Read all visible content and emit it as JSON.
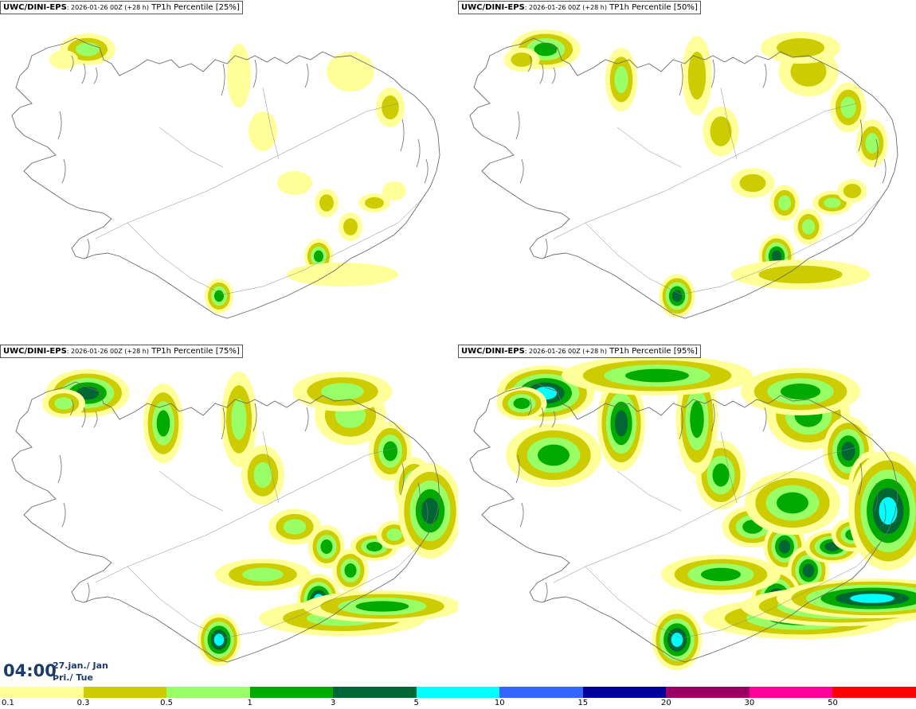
{
  "panels": [
    {
      "source": "UWC/DINI-EPS",
      "run": ": 2026-01-26 00Z (+28 h)",
      "field": " TP1h Percentile [25%]",
      "level": 1
    },
    {
      "source": "UWC/DINI-EPS",
      "run": ": 2026-01-26 00Z (+28 h)",
      "field": " TP1h Percentile [50%]",
      "level": 2
    },
    {
      "source": "UWC/DINI-EPS",
      "run": ": 2026-01-26 00Z (+28 h)",
      "field": " TP1h Percentile [75%]",
      "level": 3
    },
    {
      "source": "UWC/DINI-EPS",
      "run": ": 2026-01-26 00Z (+28 h)",
      "field": " TP1h Percentile [95%]",
      "level": 4
    }
  ],
  "time": {
    "hour": "04:00",
    "date": "27.jan./ Jan",
    "weekday": "Þri./ Tue"
  },
  "colorbar": {
    "colors": [
      "#ffff99",
      "#cccc00",
      "#99ff66",
      "#00aa00",
      "#006633",
      "#00ffff",
      "#3366ff",
      "#000099",
      "#990066",
      "#ff0099",
      "#ff0000"
    ],
    "labels": [
      "0.1",
      "0.3",
      "0.5",
      "1",
      "3",
      "5",
      "10",
      "15",
      "20",
      "30",
      "50"
    ]
  },
  "colors": {
    "level1": "#ffff99",
    "level2": "#cccc00",
    "level3": "#99ff66",
    "level4": "#00aa00",
    "level5": "#006633",
    "level6": "#00ffff",
    "coast": "#6b6b6b"
  }
}
